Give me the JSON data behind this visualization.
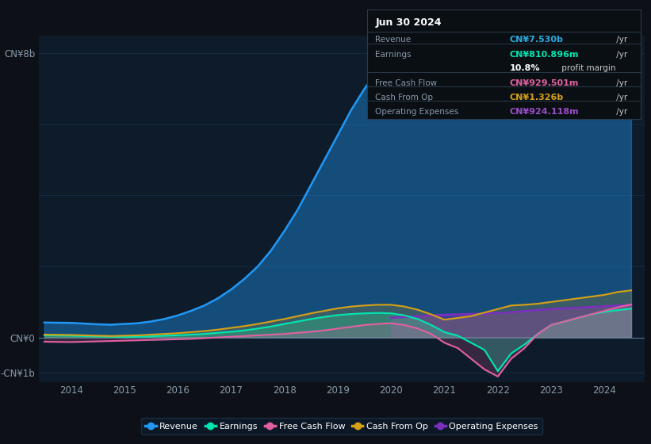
{
  "bg_color": "#0d1117",
  "plot_bg_color": "#0d1b2a",
  "grid_color": "#1a3350",
  "title_date": "Jun 30 2024",
  "tooltip": {
    "Revenue": {
      "value": "CN¥7.530b",
      "color": "#29abe2"
    },
    "Earnings": {
      "value": "CN¥810.896m",
      "color": "#00e5b0"
    },
    "profit_margin": "10.8% profit margin",
    "Free Cash Flow": {
      "value": "CN¥929.501m",
      "color": "#e060a0"
    },
    "Cash From Op": {
      "value": "CN¥1.326b",
      "color": "#d4a017"
    },
    "Operating Expenses": {
      "value": "CN¥924.118m",
      "color": "#9b4dca"
    }
  },
  "ylim": [
    -1250000000.0,
    8500000000.0
  ],
  "ytick_vals": [
    -1000000000.0,
    0,
    8000000000.0
  ],
  "ytick_labels": [
    "-CN¥1b",
    "CN¥0",
    "CN¥8b"
  ],
  "years": [
    2013.5,
    2014.0,
    2014.25,
    2014.5,
    2014.75,
    2015.0,
    2015.25,
    2015.5,
    2015.75,
    2016.0,
    2016.25,
    2016.5,
    2016.75,
    2017.0,
    2017.25,
    2017.5,
    2017.75,
    2018.0,
    2018.25,
    2018.5,
    2018.75,
    2019.0,
    2019.25,
    2019.5,
    2019.75,
    2020.0,
    2020.25,
    2020.5,
    2020.75,
    2021.0,
    2021.25,
    2021.5,
    2021.75,
    2022.0,
    2022.25,
    2022.5,
    2022.75,
    2023.0,
    2023.25,
    2023.5,
    2023.75,
    2024.0,
    2024.25,
    2024.5
  ],
  "revenue": [
    420000000.0,
    410000000.0,
    390000000.0,
    370000000.0,
    360000000.0,
    380000000.0,
    400000000.0,
    450000000.0,
    520000000.0,
    620000000.0,
    750000000.0,
    900000000.0,
    1100000000.0,
    1350000000.0,
    1650000000.0,
    2000000000.0,
    2450000000.0,
    3000000000.0,
    3600000000.0,
    4300000000.0,
    5000000000.0,
    5700000000.0,
    6400000000.0,
    7000000000.0,
    7500000000.0,
    7780000000.0,
    7750000000.0,
    7500000000.0,
    7000000000.0,
    6550000000.0,
    6600000000.0,
    6800000000.0,
    7000000000.0,
    7250000000.0,
    7450000000.0,
    7350000000.0,
    7100000000.0,
    6900000000.0,
    6850000000.0,
    6500000000.0,
    6850000000.0,
    7050000000.0,
    7350000000.0,
    7530000000.0
  ],
  "earnings": [
    60000000.0,
    50000000.0,
    40000000.0,
    30000000.0,
    20000000.0,
    10000000.0,
    20000000.0,
    30000000.0,
    50000000.0,
    60000000.0,
    80000000.0,
    100000000.0,
    130000000.0,
    160000000.0,
    200000000.0,
    250000000.0,
    310000000.0,
    380000000.0,
    450000000.0,
    520000000.0,
    580000000.0,
    630000000.0,
    660000000.0,
    680000000.0,
    690000000.0,
    680000000.0,
    620000000.0,
    520000000.0,
    350000000.0,
    150000000.0,
    50000000.0,
    -150000000.0,
    -350000000.0,
    -950000000.0,
    -450000000.0,
    -200000000.0,
    100000000.0,
    350000000.0,
    450000000.0,
    550000000.0,
    650000000.0,
    720000000.0,
    770000000.0,
    810000000.0
  ],
  "free_cash_flow": [
    -120000000.0,
    -130000000.0,
    -120000000.0,
    -110000000.0,
    -100000000.0,
    -90000000.0,
    -80000000.0,
    -70000000.0,
    -60000000.0,
    -50000000.0,
    -40000000.0,
    -20000000.0,
    0,
    20000000.0,
    40000000.0,
    60000000.0,
    80000000.0,
    100000000.0,
    130000000.0,
    160000000.0,
    200000000.0,
    250000000.0,
    300000000.0,
    350000000.0,
    380000000.0,
    400000000.0,
    350000000.0,
    250000000.0,
    100000000.0,
    -150000000.0,
    -300000000.0,
    -600000000.0,
    -900000000.0,
    -1100000000.0,
    -600000000.0,
    -300000000.0,
    100000000.0,
    350000000.0,
    450000000.0,
    550000000.0,
    650000000.0,
    750000000.0,
    850000000.0,
    930000000.0
  ],
  "cash_from_op": [
    80000000.0,
    70000000.0,
    60000000.0,
    50000000.0,
    40000000.0,
    50000000.0,
    60000000.0,
    80000000.0,
    100000000.0,
    120000000.0,
    150000000.0,
    180000000.0,
    220000000.0,
    270000000.0,
    320000000.0,
    380000000.0,
    450000000.0,
    520000000.0,
    600000000.0,
    680000000.0,
    750000000.0,
    820000000.0,
    870000000.0,
    900000000.0,
    920000000.0,
    920000000.0,
    870000000.0,
    780000000.0,
    650000000.0,
    500000000.0,
    550000000.0,
    600000000.0,
    700000000.0,
    800000000.0,
    900000000.0,
    920000000.0,
    950000000.0,
    1000000000.0,
    1050000000.0,
    1100000000.0,
    1150000000.0,
    1200000000.0,
    1280000000.0,
    1326000000.0
  ],
  "op_expenses": [
    0,
    0,
    0,
    0,
    0,
    0,
    0,
    0,
    0,
    0,
    0,
    0,
    0,
    0,
    0,
    0,
    0,
    0,
    0,
    0,
    0,
    0,
    0,
    0,
    0,
    550000000.0,
    580000000.0,
    600000000.0,
    620000000.0,
    640000000.0,
    650000000.0,
    660000000.0,
    670000000.0,
    690000000.0,
    710000000.0,
    740000000.0,
    770000000.0,
    800000000.0,
    820000000.0,
    840000000.0,
    860000000.0,
    880000000.0,
    900000000.0,
    924000000.0
  ],
  "colors": {
    "revenue": "#2196f3",
    "earnings": "#00e5b0",
    "free_cash_flow": "#e060a0",
    "cash_from_op": "#d4a017",
    "op_expenses": "#7b2fbe"
  },
  "legend_labels": [
    "Revenue",
    "Earnings",
    "Free Cash Flow",
    "Cash From Op",
    "Operating Expenses"
  ],
  "legend_colors": [
    "#2196f3",
    "#00e5b0",
    "#e060a0",
    "#d4a017",
    "#7b2fbe"
  ],
  "xtick_years": [
    2014,
    2015,
    2016,
    2017,
    2018,
    2019,
    2020,
    2021,
    2022,
    2023,
    2024
  ],
  "xlim": [
    2013.4,
    2024.75
  ]
}
